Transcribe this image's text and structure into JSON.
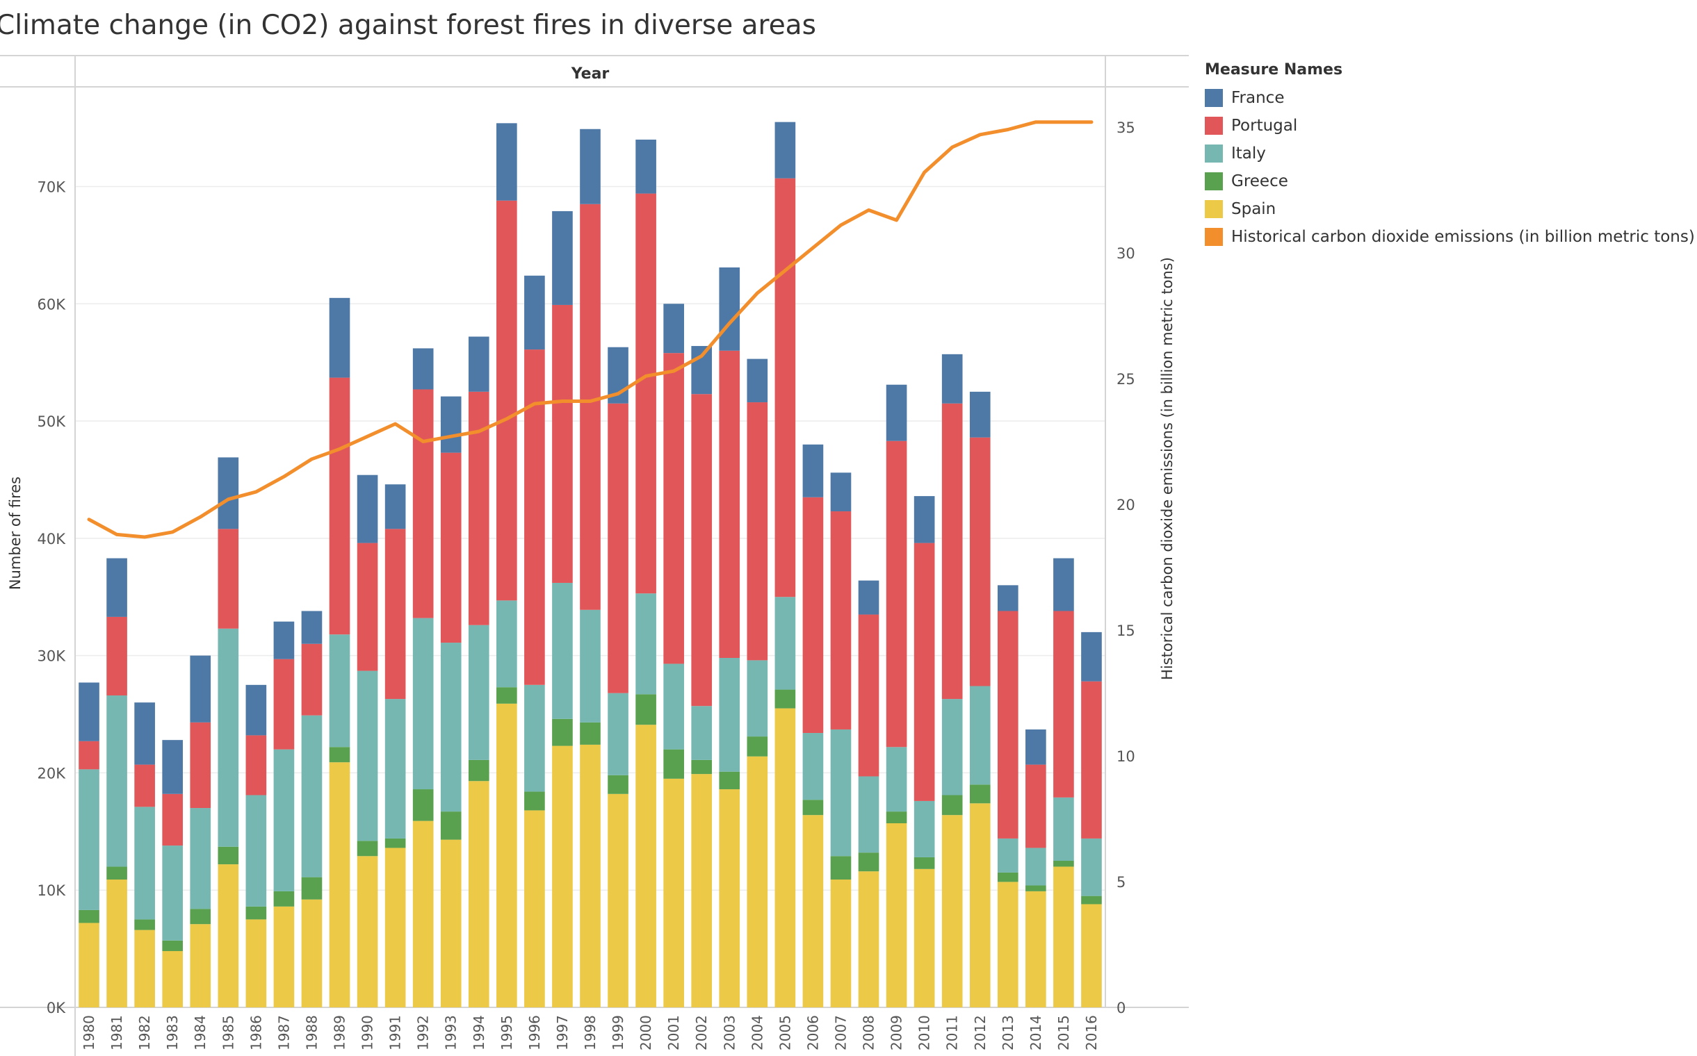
{
  "title": "Climate change (in CO2) against forest fires in diverse areas",
  "chart_data": {
    "type": "bar",
    "stacked": true,
    "title": "Climate change (in CO2) against forest fires in diverse areas",
    "header": "Year",
    "ylabel": "Number of fires",
    "y2label": "Historical carbon dioxide emissions  (in billion metric tons)",
    "ylim": [
      0,
      78500
    ],
    "y2lim": [
      0,
      36.6
    ],
    "yticks": [
      0,
      10000,
      20000,
      30000,
      40000,
      50000,
      60000,
      70000
    ],
    "ytick_labels": [
      "0K",
      "10K",
      "20K",
      "30K",
      "40K",
      "50K",
      "60K",
      "70K"
    ],
    "y2ticks": [
      0,
      5,
      10,
      15,
      20,
      25,
      30,
      35
    ],
    "y2tick_labels": [
      "0",
      "5",
      "10",
      "15",
      "20",
      "25",
      "30",
      "35"
    ],
    "grid": true,
    "legend_title": "Measure Names",
    "legend_position": "right",
    "categories": [
      "1980",
      "1981",
      "1982",
      "1983",
      "1984",
      "1985",
      "1986",
      "1987",
      "1988",
      "1989",
      "1990",
      "1991",
      "1992",
      "1993",
      "1994",
      "1995",
      "1996",
      "1997",
      "1998",
      "1999",
      "2000",
      "2001",
      "2002",
      "2003",
      "2004",
      "2005",
      "2006",
      "2007",
      "2008",
      "2009",
      "2010",
      "2011",
      "2012",
      "2013",
      "2014",
      "2015",
      "2016"
    ],
    "series": [
      {
        "name": "Spain",
        "color": "#EDC948",
        "values": [
          7200,
          10900,
          6600,
          4800,
          7100,
          12200,
          7500,
          8600,
          9200,
          20900,
          12900,
          13600,
          15900,
          14300,
          19300,
          25900,
          16800,
          22300,
          22400,
          18200,
          24100,
          19500,
          19900,
          18600,
          21400,
          25500,
          16400,
          10900,
          11600,
          15700,
          11800,
          16400,
          17400,
          10700,
          9900,
          12000,
          8800
        ]
      },
      {
        "name": "Greece",
        "color": "#59A14F",
        "values": [
          1100,
          1100,
          900,
          900,
          1300,
          1500,
          1100,
          1300,
          1900,
          1300,
          1300,
          800,
          2700,
          2400,
          1800,
          1400,
          1600,
          2300,
          1900,
          1600,
          2600,
          2500,
          1200,
          1500,
          1700,
          1600,
          1300,
          2000,
          1600,
          1000,
          1000,
          1700,
          1600,
          800,
          500,
          500,
          700
        ]
      },
      {
        "name": "Italy",
        "color": "#76B7B2",
        "values": [
          12000,
          14600,
          9600,
          8100,
          8600,
          18600,
          9500,
          12100,
          13800,
          9600,
          14500,
          11900,
          14600,
          14400,
          11500,
          7400,
          9100,
          11600,
          9600,
          7000,
          8600,
          7300,
          4600,
          9700,
          6500,
          7900,
          5700,
          10800,
          6500,
          5500,
          4800,
          8200,
          8400,
          2900,
          3200,
          5400,
          4900
        ]
      },
      {
        "name": "Portugal",
        "color": "#E15759",
        "values": [
          2400,
          6700,
          3600,
          4400,
          7300,
          8500,
          5100,
          7700,
          6100,
          21900,
          10900,
          14500,
          19500,
          16200,
          19900,
          34100,
          28600,
          23700,
          34600,
          24700,
          34100,
          26500,
          26600,
          26200,
          22000,
          35700,
          20100,
          18600,
          13800,
          26100,
          22000,
          25200,
          21200,
          19400,
          7100,
          15900,
          13400
        ]
      },
      {
        "name": "France",
        "color": "#4E79A7",
        "values": [
          5000,
          5000,
          5300,
          4600,
          5700,
          6100,
          4300,
          3200,
          2800,
          6800,
          5800,
          3800,
          3500,
          4800,
          4700,
          6600,
          6300,
          8000,
          6400,
          4800,
          4600,
          4200,
          4100,
          7100,
          3700,
          4800,
          4500,
          3300,
          2900,
          4800,
          4000,
          4200,
          3900,
          2200,
          3000,
          4500,
          4200
        ]
      }
    ],
    "line": {
      "name": "Historical carbon dioxide emissions  (in billion metric tons)",
      "color": "#F28E2B",
      "values": [
        19.4,
        18.8,
        18.7,
        18.9,
        19.5,
        20.2,
        20.5,
        21.1,
        21.8,
        22.2,
        22.7,
        23.2,
        22.5,
        22.7,
        22.9,
        23.4,
        24.0,
        24.1,
        24.1,
        24.4,
        25.1,
        25.3,
        25.9,
        27.2,
        28.4,
        29.3,
        30.2,
        31.1,
        31.7,
        31.3,
        33.2,
        34.2,
        34.7,
        34.9,
        35.2,
        35.2,
        35.2
      ]
    }
  },
  "legend": {
    "title": "Measure Names",
    "items": [
      {
        "label": "France",
        "color": "#4E79A7"
      },
      {
        "label": "Portugal",
        "color": "#E15759"
      },
      {
        "label": "Italy",
        "color": "#76B7B2"
      },
      {
        "label": "Greece",
        "color": "#59A14F"
      },
      {
        "label": "Spain",
        "color": "#EDC948"
      },
      {
        "label": "Historical carbon dioxide emissions  (in billion metric tons)",
        "color": "#F28E2B"
      }
    ]
  }
}
